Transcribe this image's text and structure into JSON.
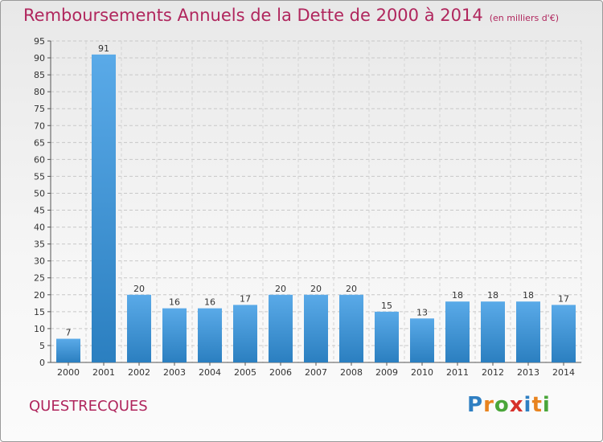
{
  "title": "Remboursements Annuels de la Dette de 2000 à 2014",
  "subtitle": "(en milliers d'€)",
  "town": "QUESTRECQUES",
  "logo": "Proxiti",
  "colors": {
    "title": "#b0265d",
    "bar_light": "#5aaae8",
    "bar_dark": "#2b7fc0"
  },
  "chart_data": {
    "type": "bar",
    "categories": [
      "2000",
      "2001",
      "2002",
      "2003",
      "2004",
      "2005",
      "2006",
      "2007",
      "2008",
      "2009",
      "2010",
      "2011",
      "2012",
      "2013",
      "2014"
    ],
    "values": [
      7,
      91,
      20,
      16,
      16,
      17,
      20,
      20,
      20,
      15,
      13,
      18,
      18,
      18,
      17
    ],
    "ylim": [
      0,
      95
    ],
    "yticks": [
      0,
      5,
      10,
      15,
      20,
      25,
      30,
      35,
      40,
      45,
      50,
      55,
      60,
      65,
      70,
      75,
      80,
      85,
      90,
      95
    ],
    "grid": true,
    "title": "Remboursements Annuels de la Dette de 2000 à 2014"
  }
}
